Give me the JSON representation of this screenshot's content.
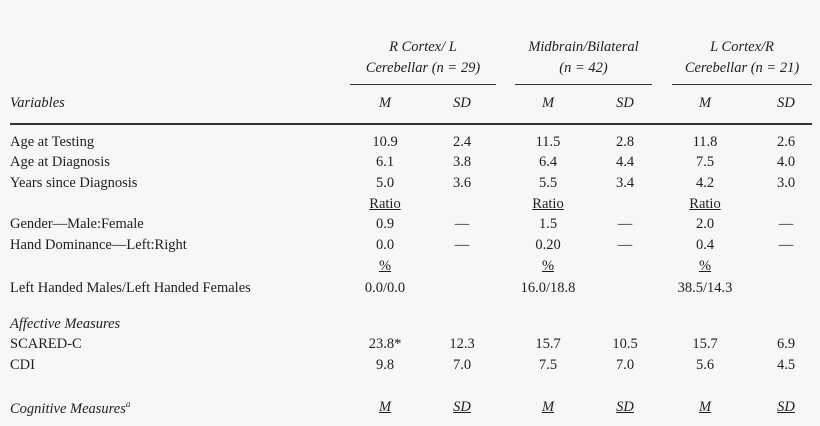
{
  "header": {
    "groups": [
      {
        "line1": "R Cortex/ L",
        "line2": "Cerebellar (n = 29)"
      },
      {
        "line1": "Midbrain/Bilateral",
        "line2": "(n = 42)"
      },
      {
        "line1": "L Cortex/R",
        "line2": "Cerebellar (n = 21)"
      }
    ],
    "variables_label": "Variables",
    "m_label": "M",
    "sd_label": "SD"
  },
  "rows": [
    {
      "label": "Age at Testing",
      "cells": [
        "10.9",
        "2.4",
        "11.5",
        "2.8",
        "11.8",
        "2.6"
      ]
    },
    {
      "label": "Age at Diagnosis",
      "cells": [
        "6.1",
        "3.8",
        "6.4",
        "4.4",
        "7.5",
        "4.0"
      ]
    },
    {
      "label": "Years since Diagnosis",
      "cells": [
        "5.0",
        "3.6",
        "5.5",
        "3.4",
        "4.2",
        "3.0"
      ]
    },
    {
      "label": "",
      "cells": [
        "Ratio",
        "",
        "Ratio",
        "",
        "Ratio",
        ""
      ],
      "underline": true
    },
    {
      "label": "Gender—Male:Female",
      "cells": [
        "0.9",
        "—",
        "1.5",
        "—",
        "2.0",
        "—"
      ]
    },
    {
      "label": "Hand Dominance—Left:Right",
      "cells": [
        "0.0",
        "—",
        "0.20",
        "—",
        "0.4",
        "—"
      ]
    },
    {
      "label": "",
      "cells": [
        "%",
        "",
        "%",
        "",
        "%",
        ""
      ],
      "underline": true
    },
    {
      "label": "Left Handed Males/Left Handed Females",
      "cells": [
        "0.0/0.0",
        "",
        "16.0/18.8",
        "",
        "38.5/14.3",
        ""
      ]
    },
    {
      "label": "Affective Measures",
      "cells": [],
      "italic": true
    },
    {
      "label": "SCARED-C",
      "cells": [
        "23.8*",
        "12.3",
        "15.7",
        "10.5",
        "15.7",
        "6.9"
      ]
    },
    {
      "label": "CDI",
      "cells": [
        "9.8",
        "7.0",
        "7.5",
        "7.0",
        "5.6",
        "4.5"
      ]
    },
    {
      "label": "Cognitive Measures",
      "sup": "a",
      "cells": [
        "M",
        "SD",
        "M",
        "SD",
        "M",
        "SD"
      ],
      "italic": true,
      "underline": true,
      "cellItalic": true
    }
  ]
}
